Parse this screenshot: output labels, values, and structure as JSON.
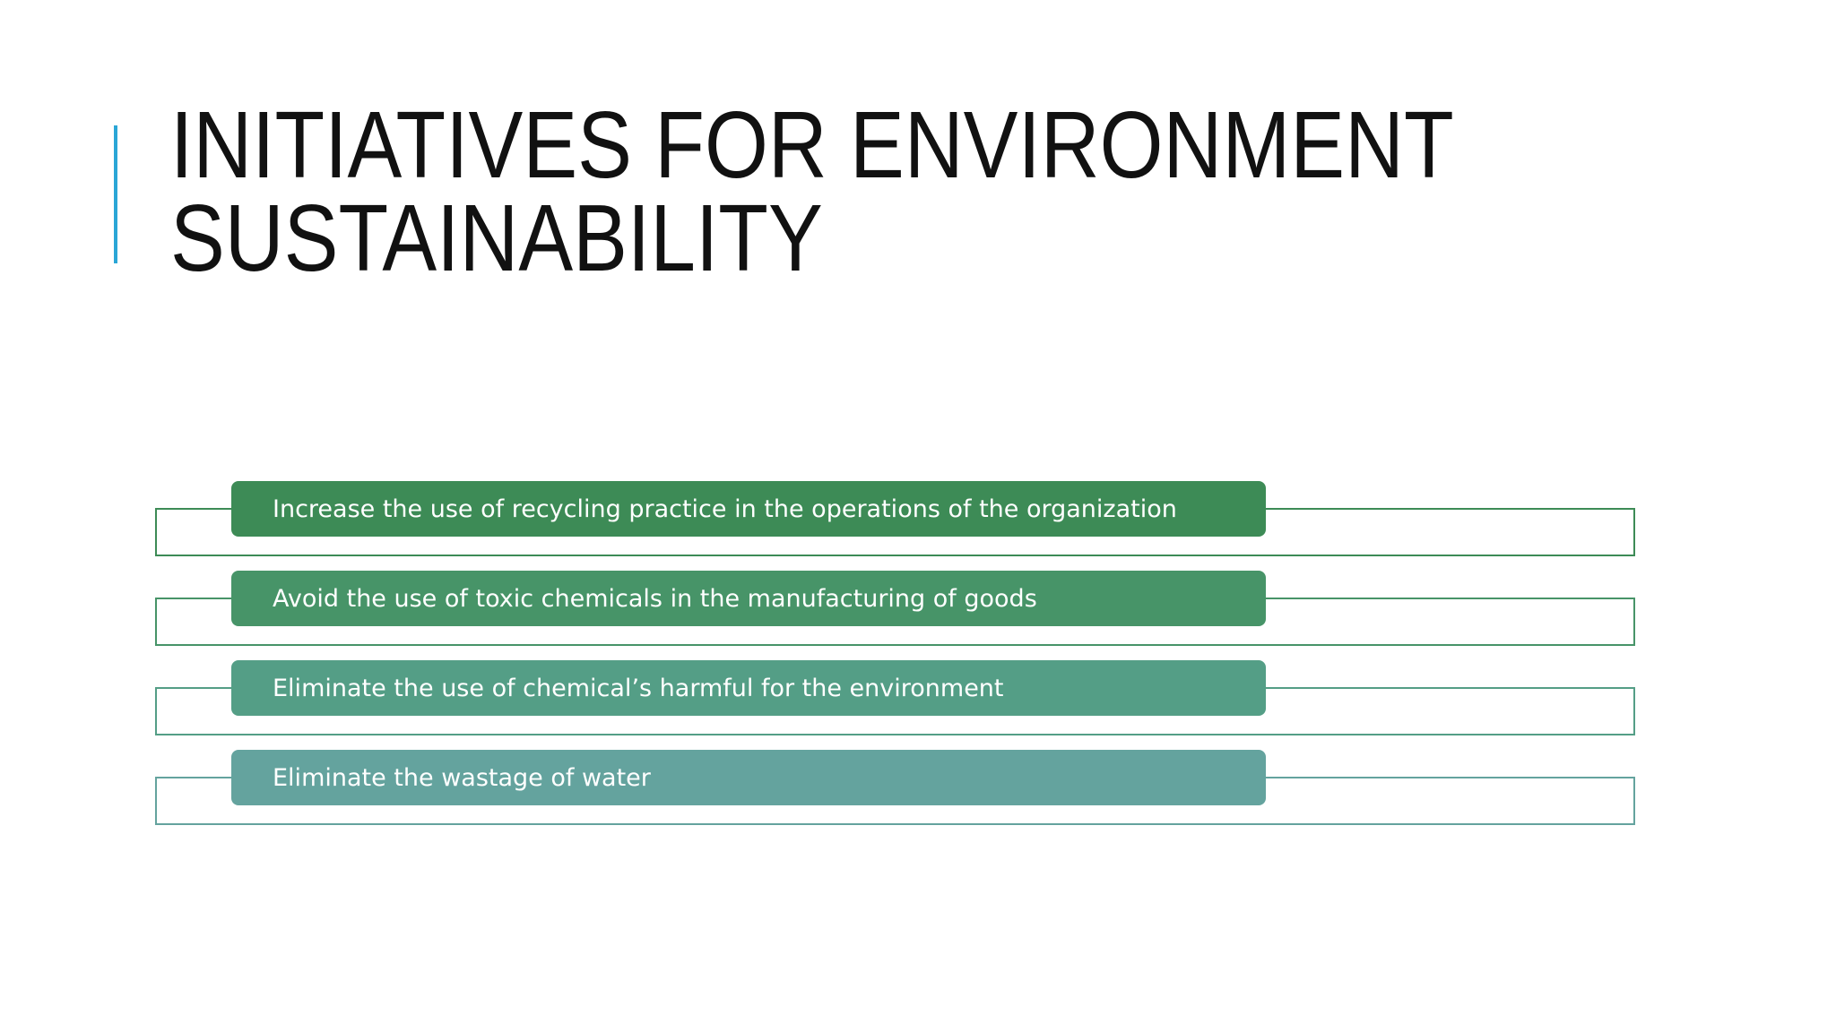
{
  "title": {
    "line1": "INITIATIVES FOR ENVIRONMENT",
    "line2": "SUSTAINABILITY"
  },
  "colors": {
    "accent": "#2aa6d6",
    "item1": "#3d8b56",
    "item2": "#479468",
    "item3": "#549e86",
    "item4": "#64a39e"
  },
  "items": [
    {
      "text": "Increase the use of recycling practice in the operations of the organization"
    },
    {
      "text": "Avoid the use of toxic chemicals in the manufacturing of goods"
    },
    {
      "text": "Eliminate the use of chemical’s harmful for the environment"
    },
    {
      "text": "Eliminate the wastage of water"
    }
  ]
}
